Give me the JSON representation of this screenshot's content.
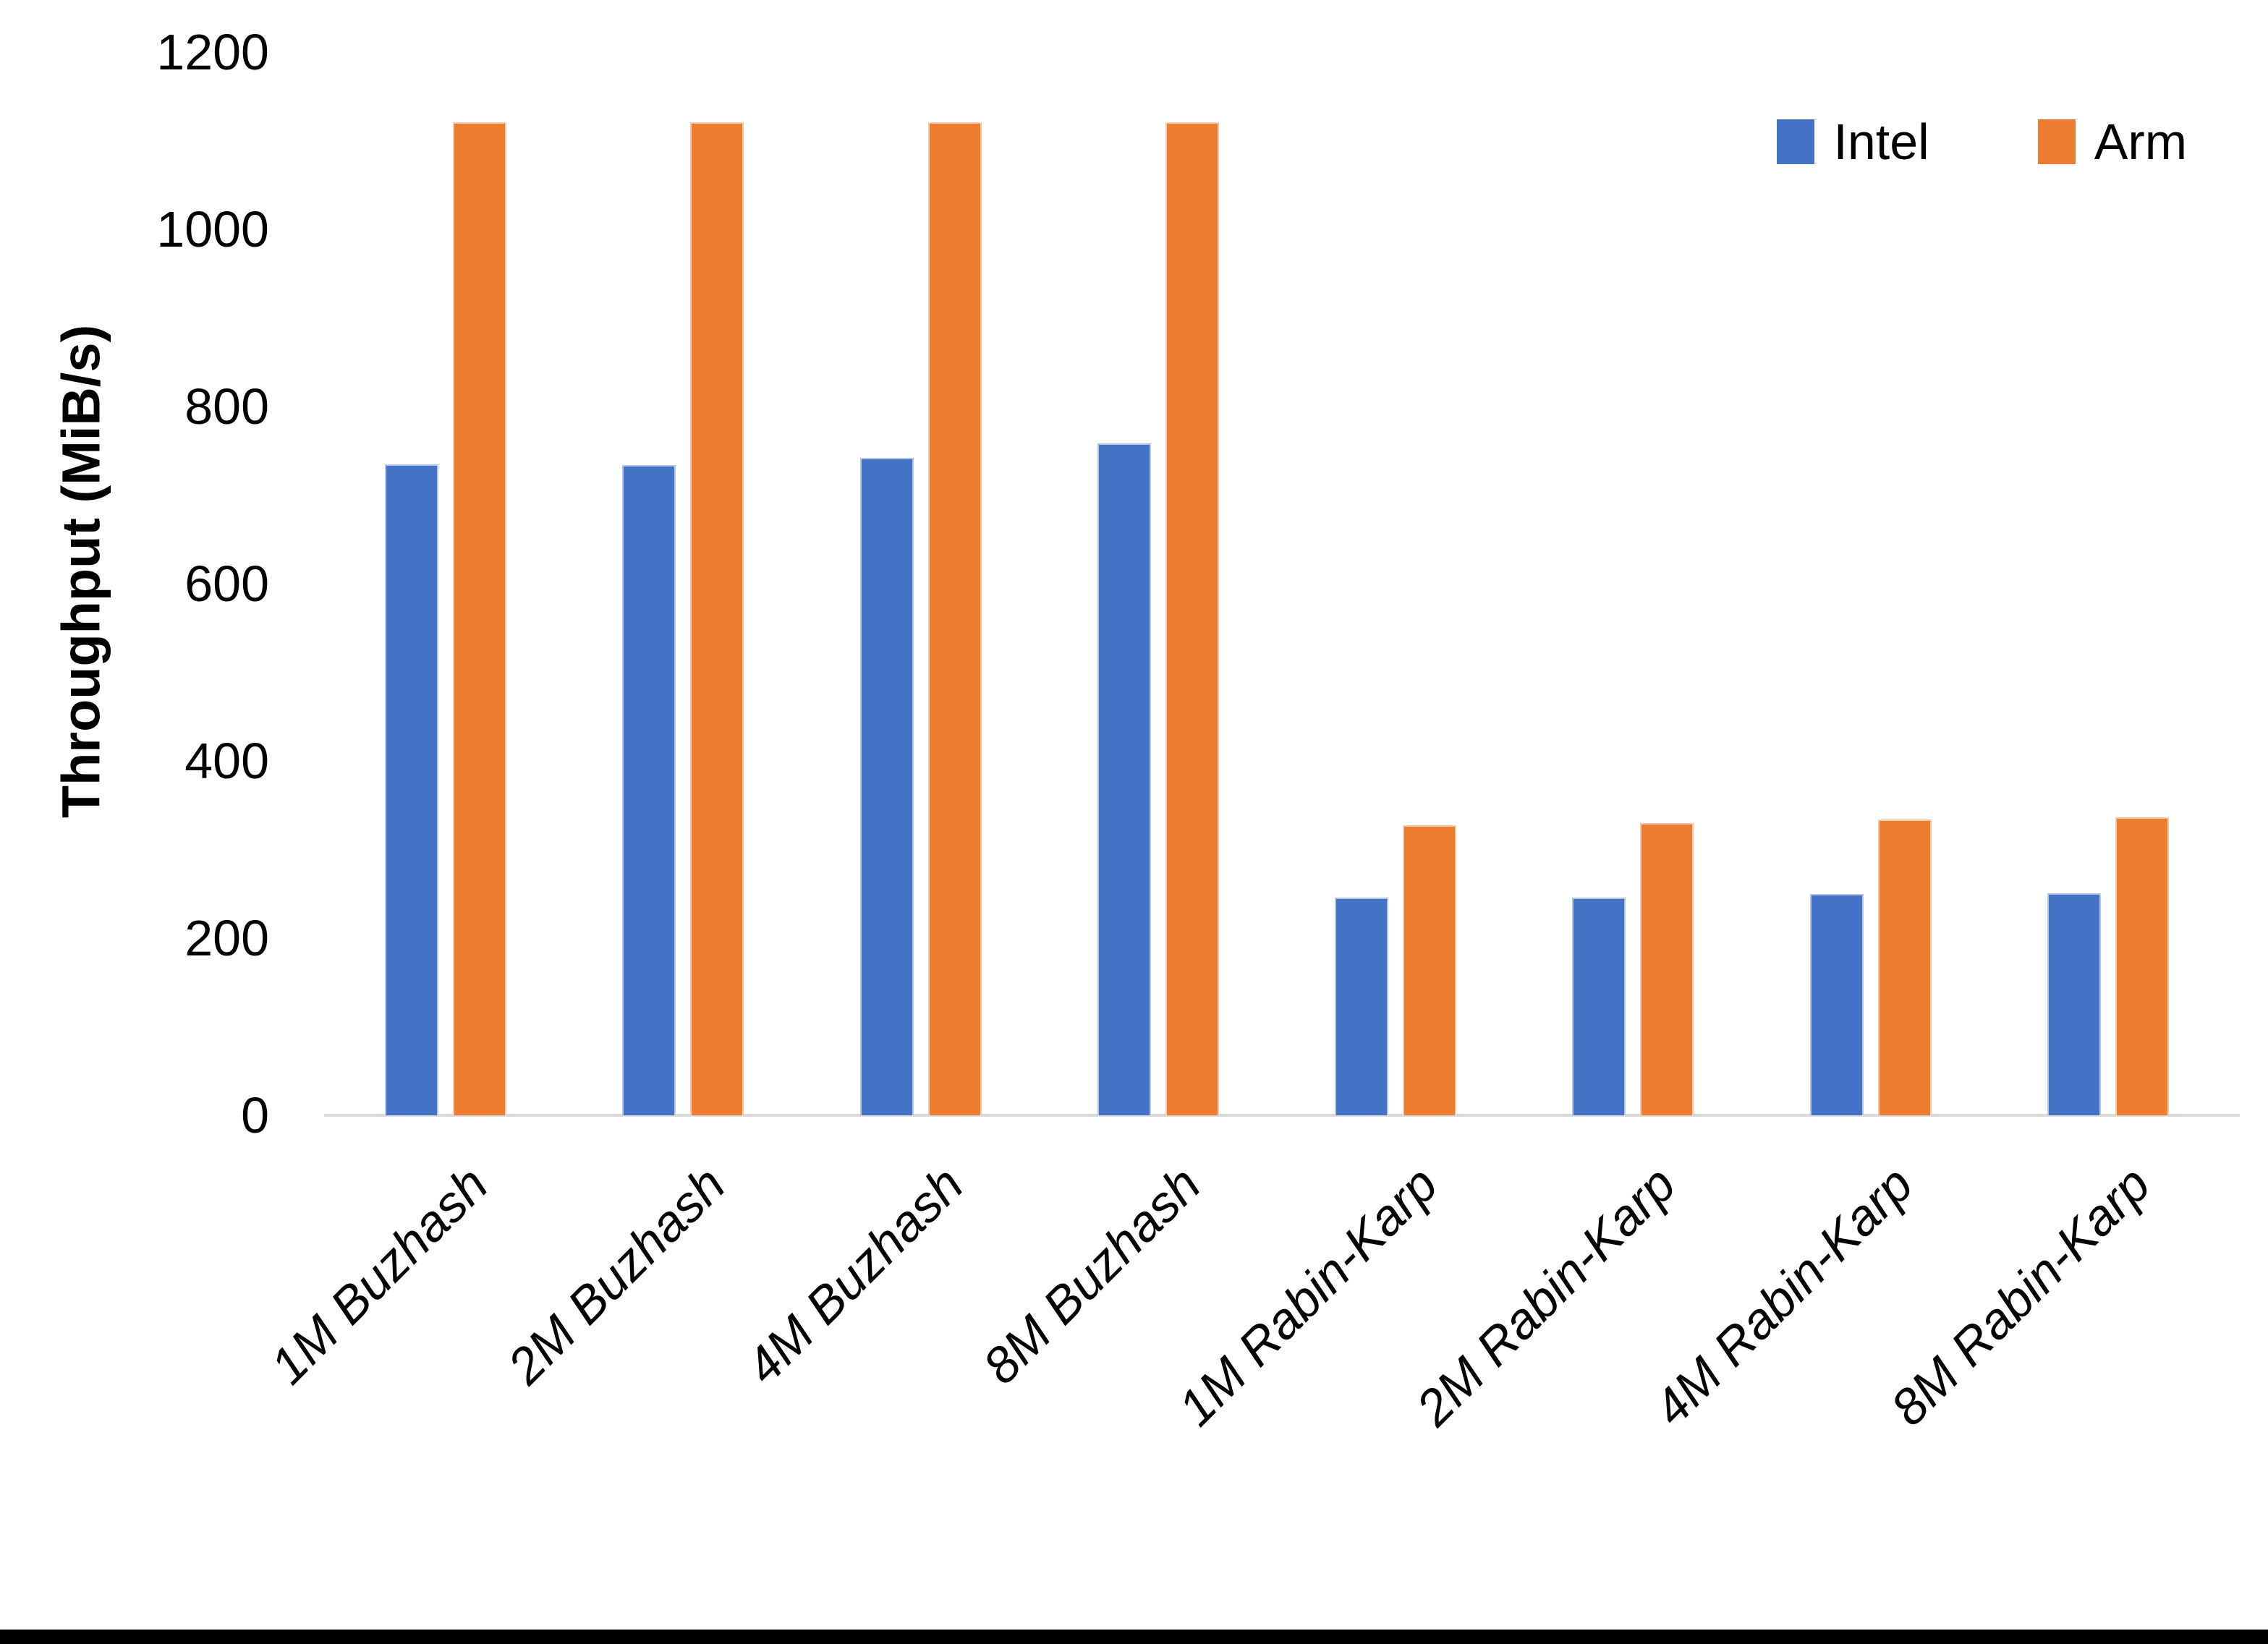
{
  "chart_data": {
    "type": "bar",
    "title": "",
    "xlabel": "",
    "ylabel": "Throughput (MiB/s)",
    "categories": [
      "1M Buzhash",
      "2M Buzhash",
      "4M Buzhash",
      "8M Buzhash",
      "1M Rabin-Karp",
      "2M Rabin-Karp",
      "4M Rabin-Karp",
      "8M Rabin-Karp"
    ],
    "series": [
      {
        "name": "Intel",
        "color": "#4472C4",
        "border": "#b4c7e7",
        "values": [
          735,
          734,
          742,
          758,
          246,
          246,
          250,
          251
        ]
      },
      {
        "name": "Arm",
        "color": "#ED7D31",
        "border": "#f8cbad",
        "values": [
          1121,
          1121,
          1121,
          1121,
          327,
          330,
          334,
          336
        ]
      }
    ],
    "ylim": [
      0,
      1200
    ],
    "yticks": [
      0,
      200,
      400,
      600,
      800,
      1000,
      1200
    ],
    "grid": false,
    "legend_position": "top-right",
    "axis_line_color": "#d9d9d9",
    "background_color": "#ffffff",
    "bottom_border_color": "#000000"
  }
}
